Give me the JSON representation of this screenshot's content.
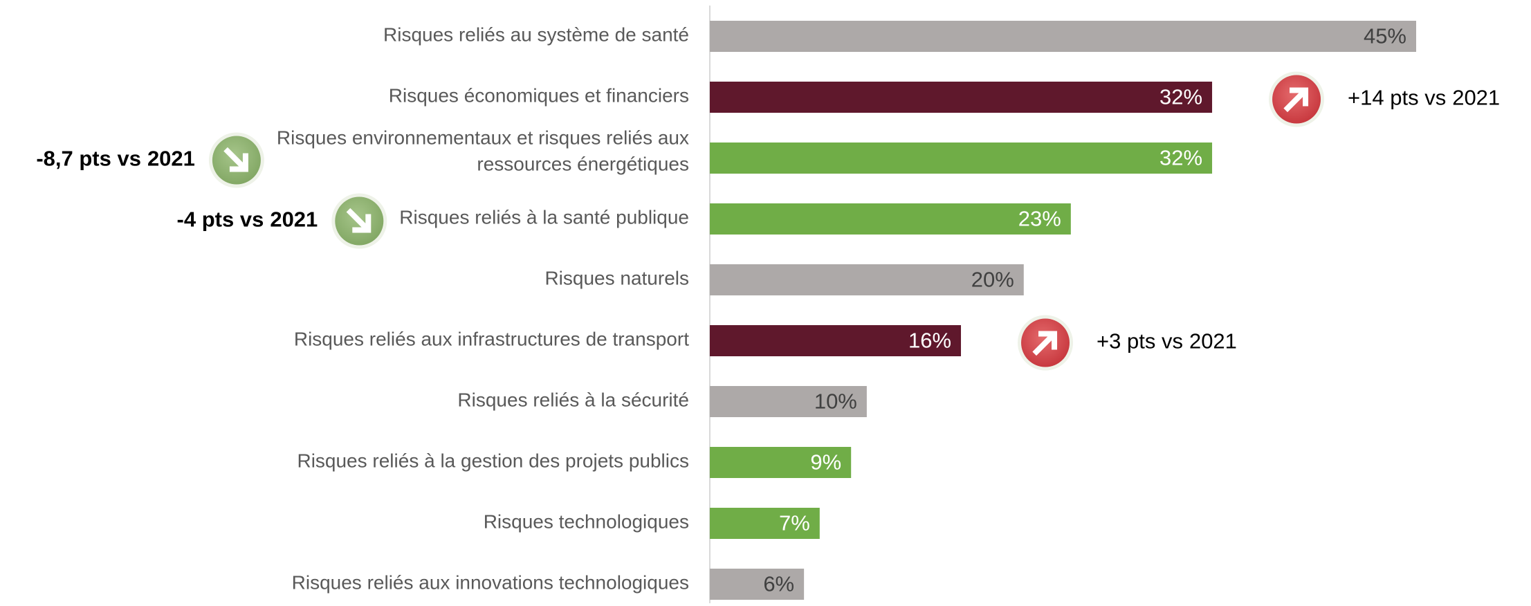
{
  "chart_data": {
    "type": "bar",
    "orientation": "horizontal",
    "categories": [
      "Risques reliés au système de santé",
      "Risques économiques et financiers",
      "Risques environnementaux et risques reliés aux\nressources énergétiques",
      "Risques reliés à la santé publique",
      "Risques naturels",
      "Risques reliés aux infrastructures de transport",
      "Risques reliés à la sécurité",
      "Risques reliés à la gestion des projets publics",
      "Risques technologiques",
      "Risques reliés aux innovations technologiques"
    ],
    "values": [
      45,
      32,
      32,
      23,
      20,
      16,
      10,
      9,
      7,
      6
    ],
    "value_labels": [
      "45%",
      "32%",
      "32%",
      "23%",
      "20%",
      "16%",
      "10%",
      "9%",
      "7%",
      "6%"
    ],
    "colors": [
      "#ada9a8",
      "#5f182c",
      "#70ad47",
      "#70ad47",
      "#ada9a8",
      "#5f182c",
      "#ada9a8",
      "#70ad47",
      "#70ad47",
      "#ada9a8"
    ],
    "annotations": [
      {
        "category": "Risques économiques et financiers",
        "text": "+14 pts vs",
        "year": "2021",
        "direction": "up"
      },
      {
        "category": "Risques environnementaux et risques reliés aux\nressources énergétiques",
        "text": "-8,7 pts vs",
        "year": "2021",
        "direction": "down"
      },
      {
        "category": "Risques reliés à la santé publique",
        "text": "-4 pts vs",
        "year": "2021",
        "direction": "down"
      },
      {
        "category": "Risques reliés aux infrastructures de transport",
        "text": "+3 pts vs",
        "year": "2021",
        "direction": "up"
      }
    ]
  }
}
